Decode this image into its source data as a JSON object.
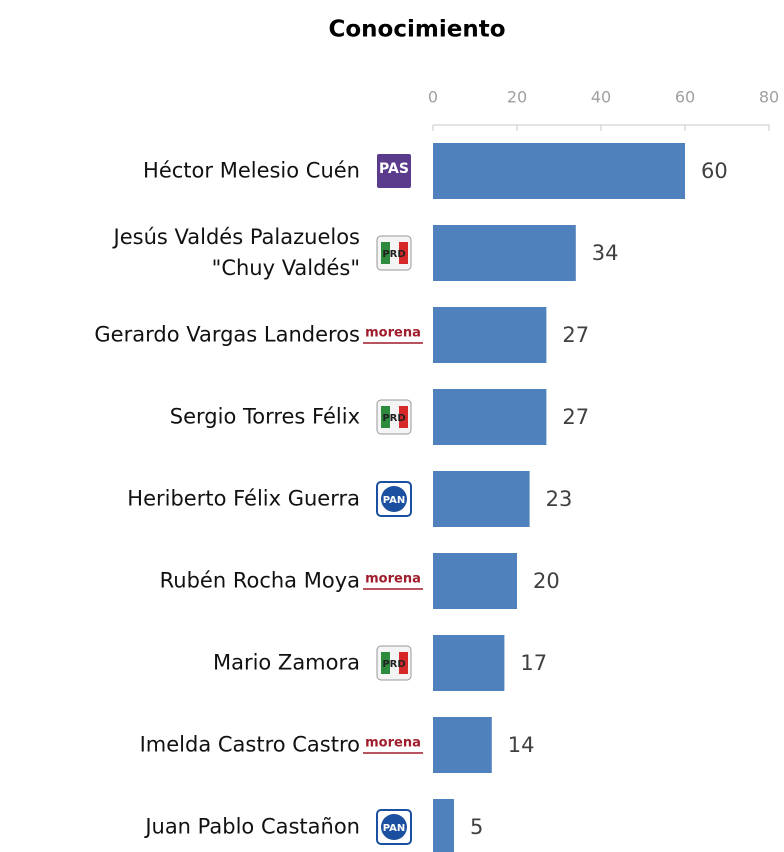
{
  "chart_data": {
    "type": "barh",
    "title": "Conocimiento",
    "categories": [
      "Héctor Melesio Cuén",
      "Jesús Valdés Palazuelos\n\"Chuy Valdés\"",
      "Gerardo Vargas Landeros",
      "Sergio Torres Félix",
      "Heriberto Félix Guerra",
      "Rubén Rocha Moya",
      "Mario Zamora",
      "Imelda Castro Castro",
      "Juan Pablo Castañon"
    ],
    "parties": [
      "PAS",
      "PRD",
      "morena",
      "PRD",
      "PAN",
      "morena",
      "PRD",
      "morena",
      "PAN"
    ],
    "values": [
      60,
      34,
      27,
      27,
      23,
      20,
      17,
      14,
      5
    ],
    "color": "#4f81bd",
    "xlim": [
      0,
      80
    ],
    "xticks": [
      0,
      20,
      40,
      60,
      80
    ],
    "grid": false
  }
}
